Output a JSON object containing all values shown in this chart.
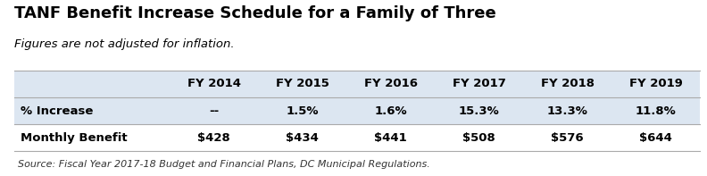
{
  "title": "TANF Benefit Increase Schedule for a Family of Three",
  "subtitle": "Figures are not adjusted for inflation.",
  "source": "Source: Fiscal Year 2017-18 Budget and Financial Plans, DC Municipal Regulations.",
  "columns": [
    "",
    "FY 2014",
    "FY 2015",
    "FY 2016",
    "FY 2017",
    "FY 2018",
    "FY 2019"
  ],
  "rows": [
    [
      "% Increase",
      "--",
      "1.5%",
      "1.6%",
      "15.3%",
      "13.3%",
      "11.8%"
    ],
    [
      "Monthly Benefit",
      "$428",
      "$434",
      "$441",
      "$508",
      "$576",
      "$644"
    ]
  ],
  "header_bg": "#dce6f1",
  "row0_bg": "#dce6f1",
  "row1_bg": "#ffffff",
  "bg_color": "#ffffff",
  "border_color": "#aaaaaa",
  "title_color": "#000000",
  "subtitle_color": "#000000",
  "source_color": "#333333",
  "header_font_size": 9.5,
  "cell_font_size": 9.5,
  "title_font_size": 13,
  "subtitle_font_size": 9.5
}
